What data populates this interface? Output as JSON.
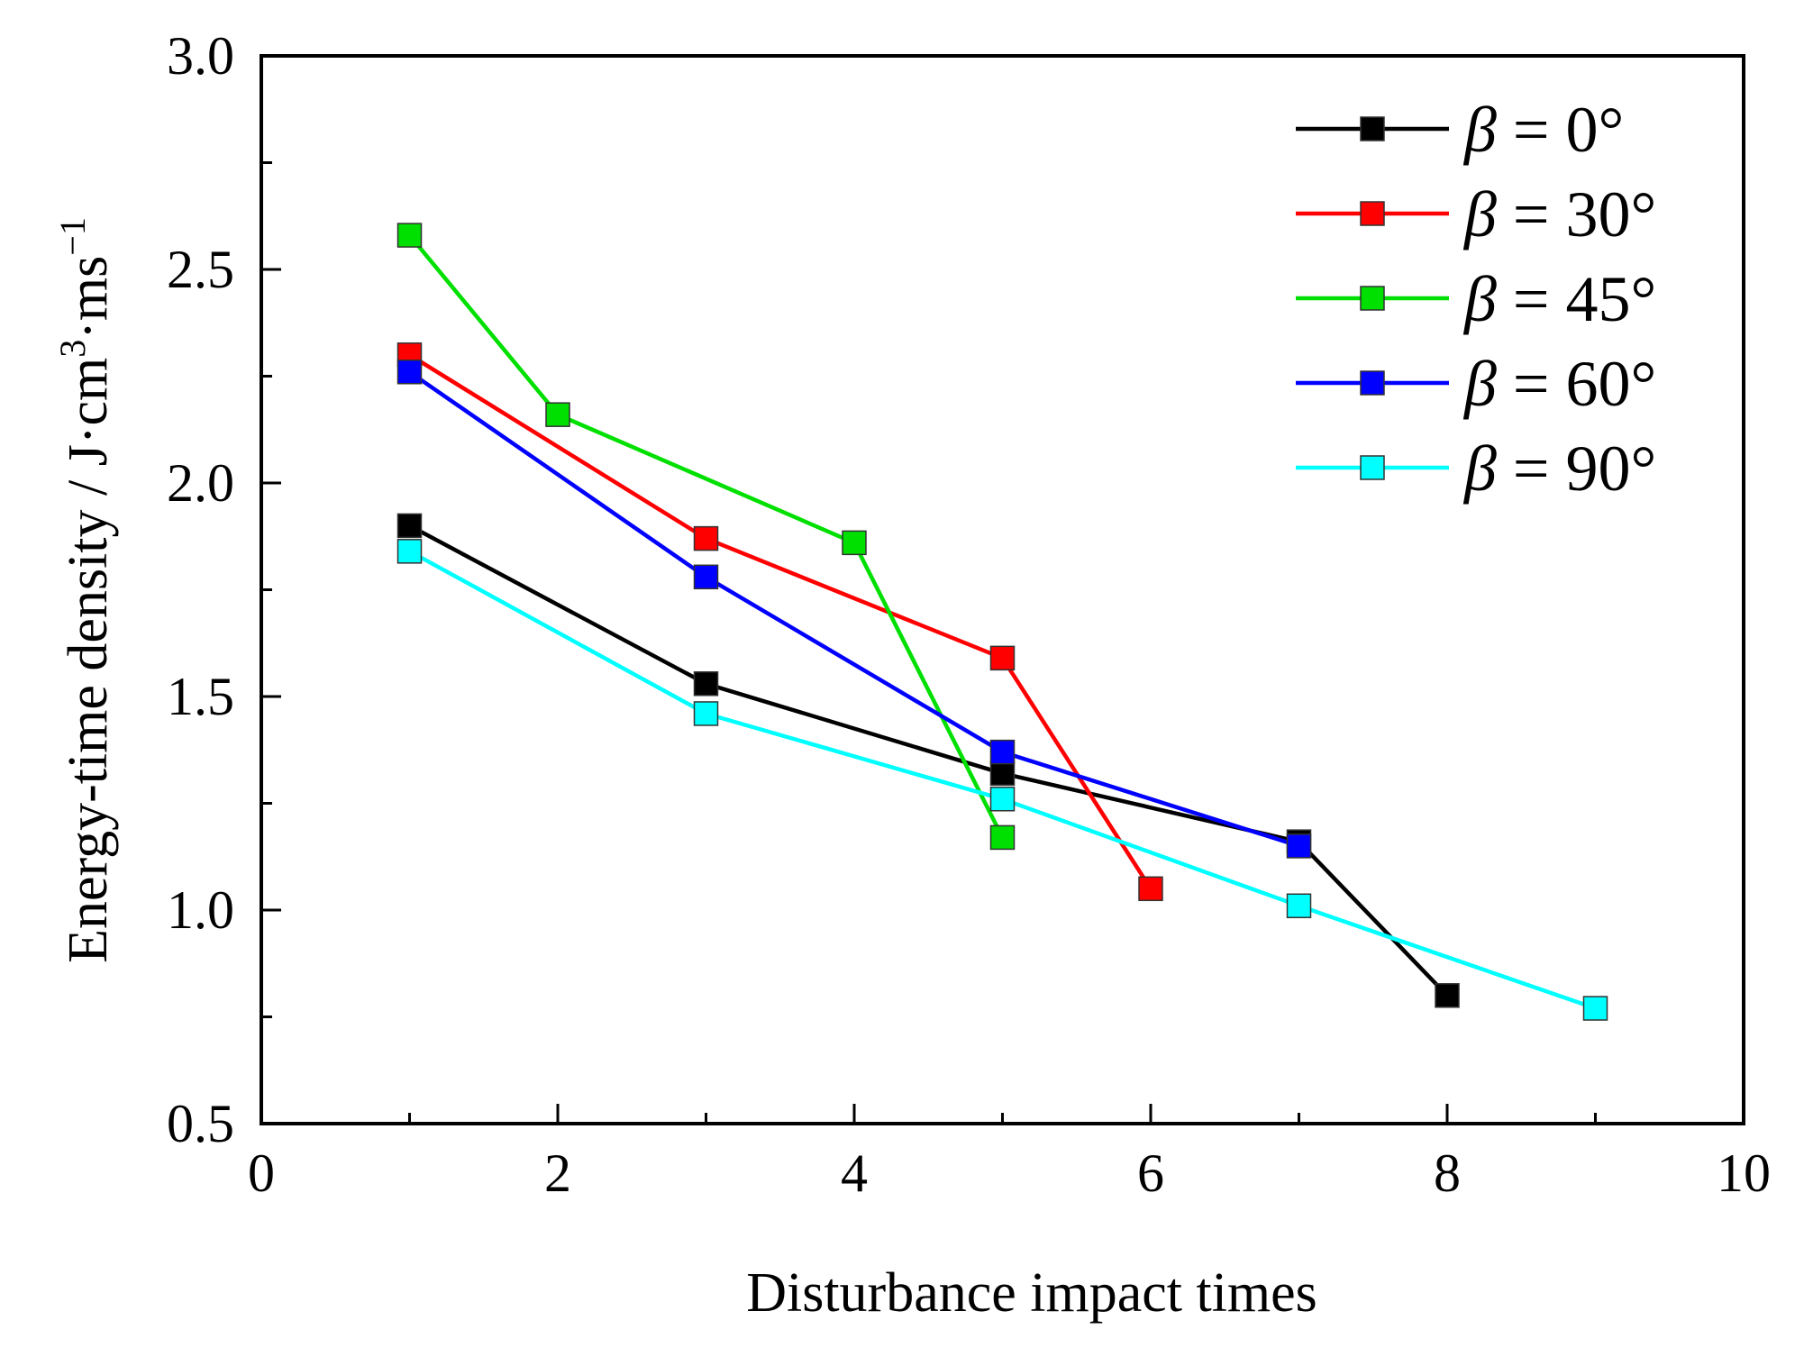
{
  "chart_data": {
    "type": "line",
    "title": "",
    "xlabel": "Disturbance impact times",
    "ylabel": "Energy-time density / J·cm",
    "ylabel_sup1": "3",
    "ylabel_mid": "·ms",
    "ylabel_sup2": "−1",
    "xlim": [
      0,
      10
    ],
    "ylim": [
      0.5,
      3.0
    ],
    "x_ticks": [
      "0",
      "2",
      "4",
      "6",
      "8",
      "10"
    ],
    "y_ticks": [
      "0.5",
      "1.0",
      "1.5",
      "2.0",
      "2.5",
      "3.0"
    ],
    "grid": false,
    "legend_position": "top-right",
    "series": [
      {
        "name": "β = 0°",
        "greek": "β",
        "rest": " = 0°",
        "color": "#000000",
        "x": [
          1,
          3,
          5,
          7,
          8
        ],
        "y": [
          1.9,
          1.53,
          1.32,
          1.16,
          0.8
        ]
      },
      {
        "name": "β = 30°",
        "greek": "β",
        "rest": " = 30°",
        "color": "#ff0000",
        "x": [
          1,
          3,
          5,
          6
        ],
        "y": [
          2.3,
          1.87,
          1.59,
          1.05
        ]
      },
      {
        "name": "β = 45°",
        "greek": "β",
        "rest": " = 45°",
        "color": "#00e000",
        "x": [
          1,
          2,
          4,
          5
        ],
        "y": [
          2.58,
          2.16,
          1.86,
          1.17
        ]
      },
      {
        "name": "β = 60°",
        "greek": "β",
        "rest": " = 60°",
        "color": "#0000ff",
        "x": [
          1,
          3,
          5,
          7
        ],
        "y": [
          2.26,
          1.78,
          1.37,
          1.15
        ]
      },
      {
        "name": "β = 90°",
        "greek": "β",
        "rest": " = 90°",
        "color": "#00ffff",
        "x": [
          1,
          3,
          5,
          7,
          9
        ],
        "y": [
          1.84,
          1.46,
          1.26,
          1.01,
          0.77
        ]
      }
    ]
  }
}
